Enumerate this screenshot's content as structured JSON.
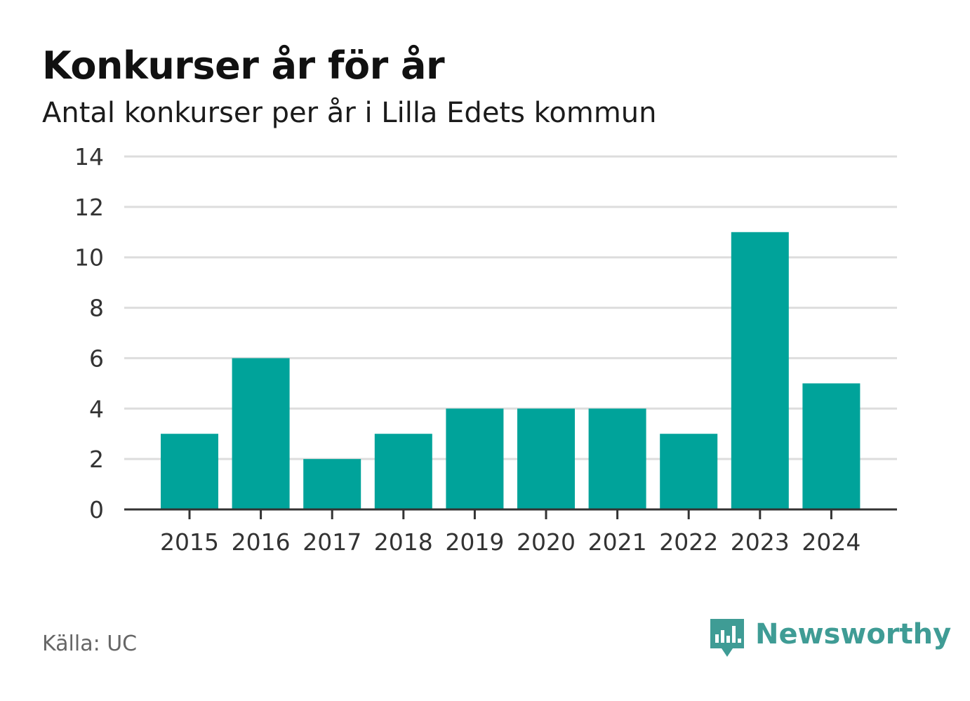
{
  "title": "Konkurser år för år",
  "subtitle": "Antal konkurser per år i Lilla Edets kommun",
  "source": "Källa: UC",
  "brand": {
    "name": "Newsworthy",
    "color": "#3f9c95",
    "icon": "bar-chart-speech-bubble-icon"
  },
  "colors": {
    "bar": "#00a39a",
    "grid": "#dddddd",
    "axis": "#333333"
  },
  "chart_data": {
    "type": "bar",
    "categories": [
      "2015",
      "2016",
      "2017",
      "2018",
      "2019",
      "2020",
      "2021",
      "2022",
      "2023",
      "2024"
    ],
    "values": [
      3,
      6,
      2,
      3,
      4,
      4,
      4,
      3,
      11,
      5
    ],
    "title": "Konkurser år för år",
    "subtitle": "Antal konkurser per år i Lilla Edets kommun",
    "xlabel": "",
    "ylabel": "",
    "ylim": [
      0,
      14
    ],
    "yticks": [
      0,
      2,
      4,
      6,
      8,
      10,
      12,
      14
    ],
    "grid": true,
    "legend": "none"
  }
}
